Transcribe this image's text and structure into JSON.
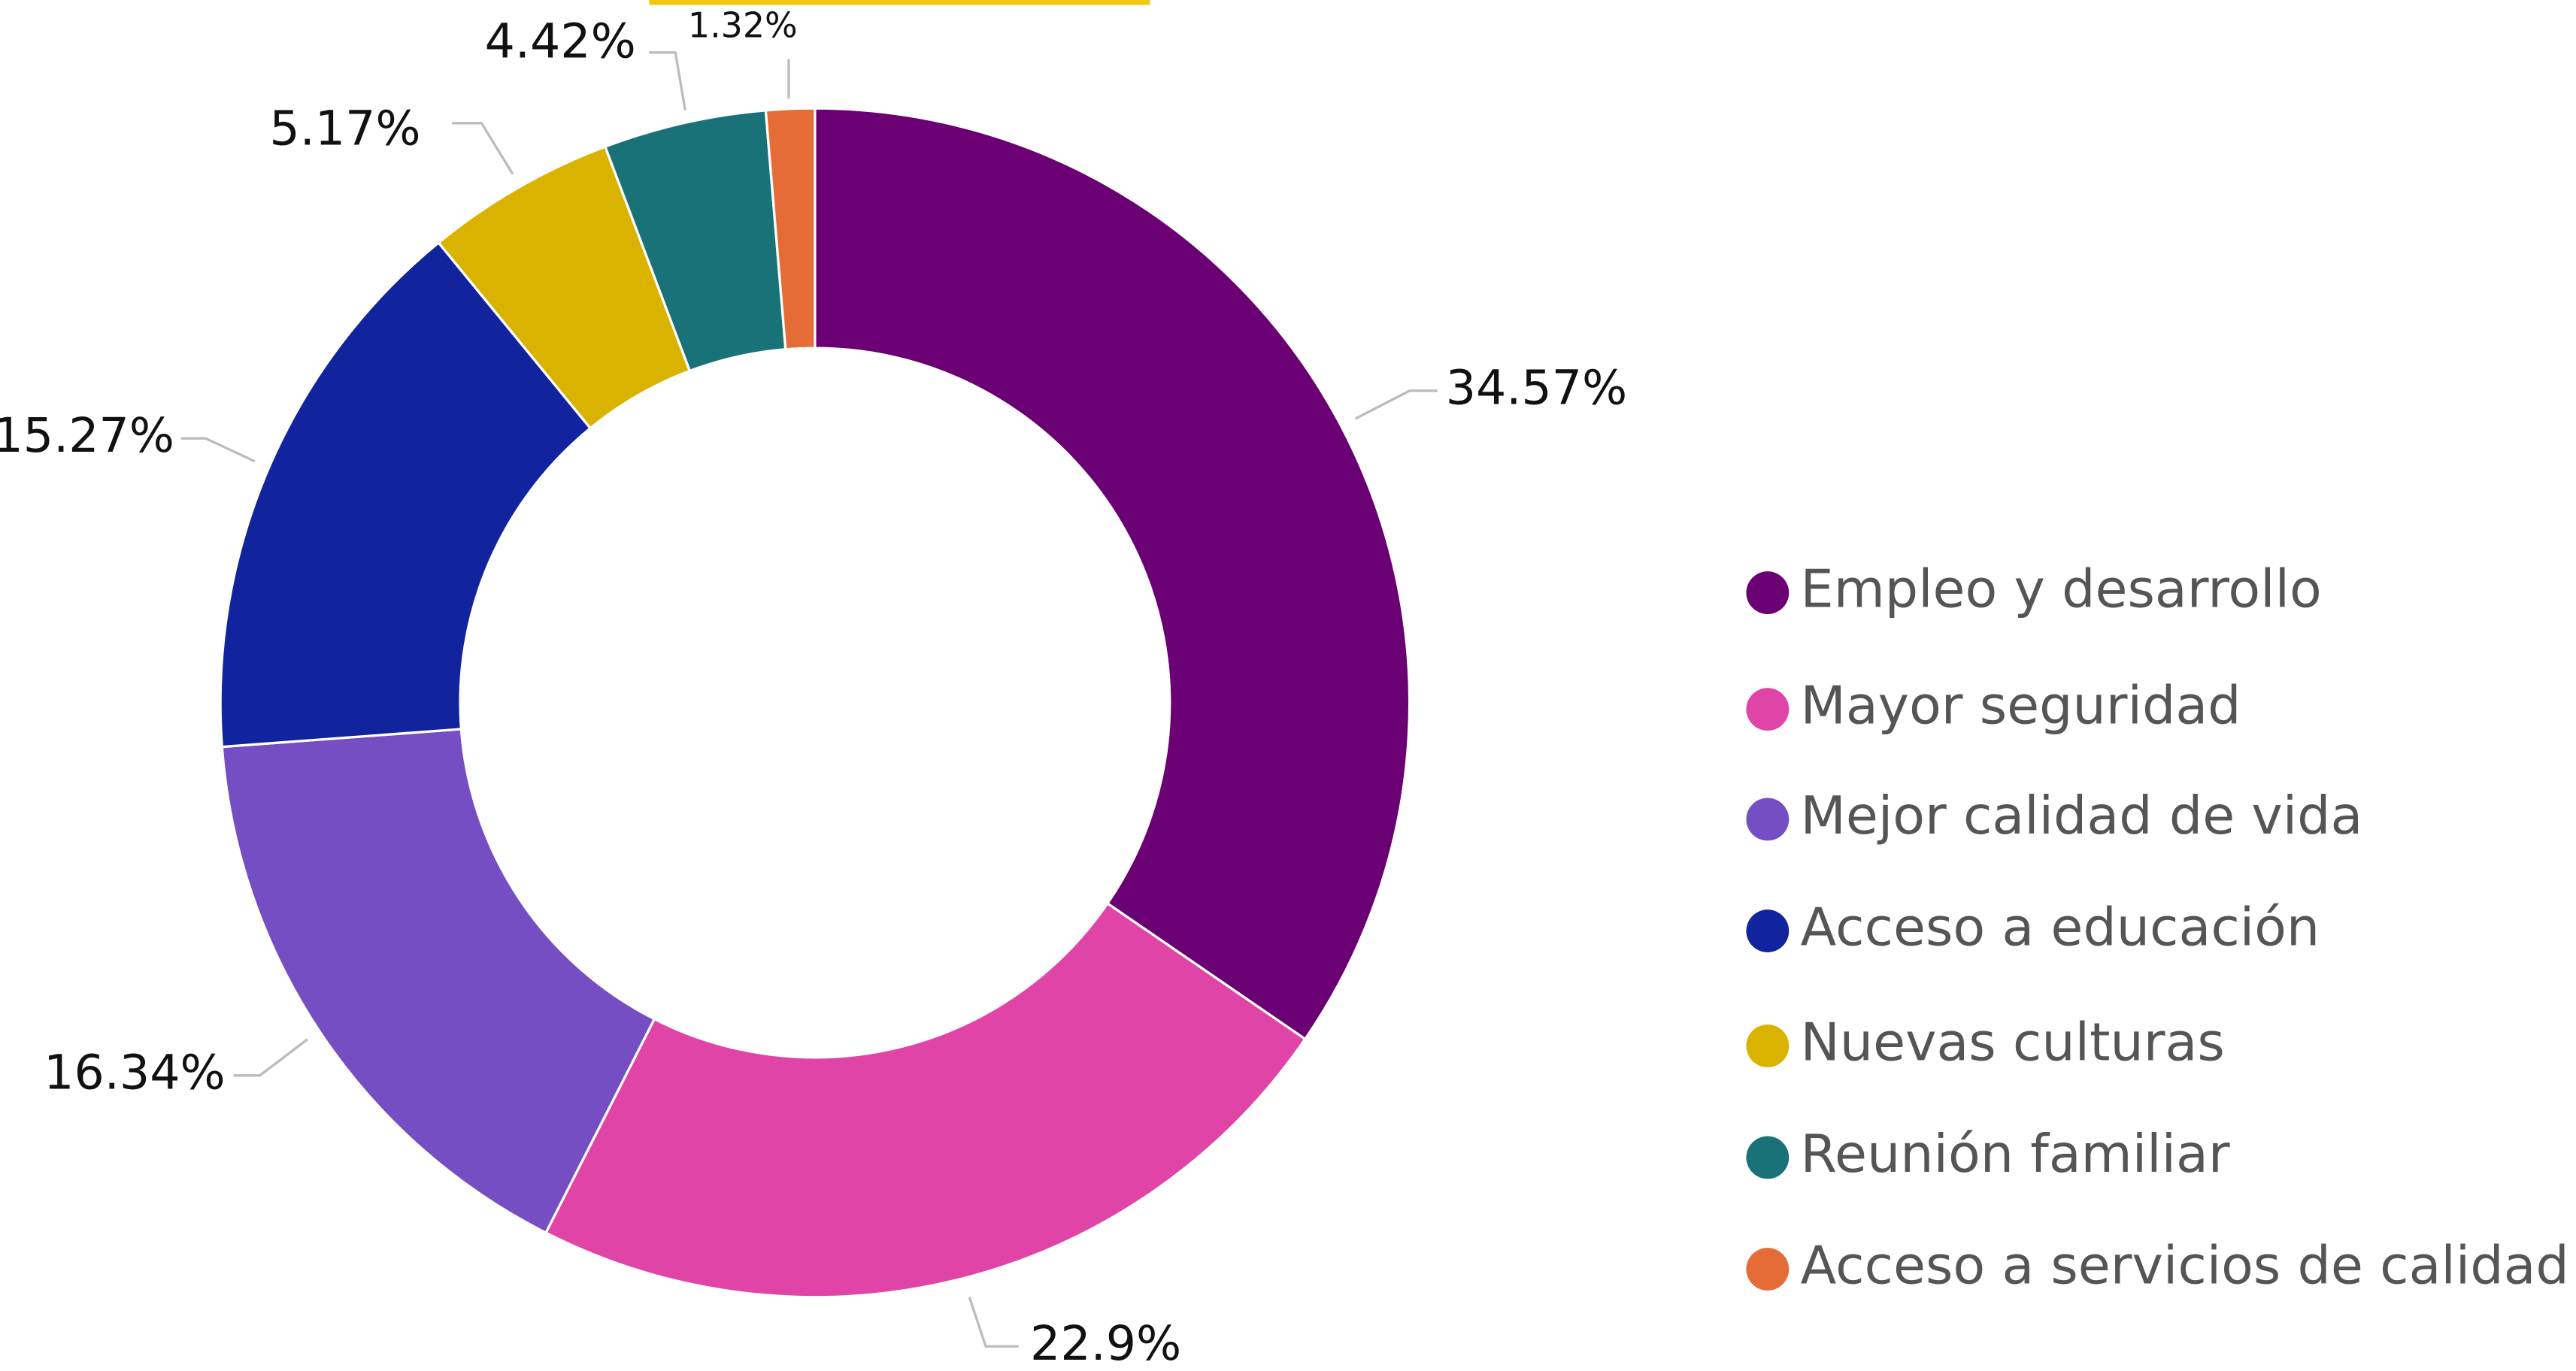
{
  "chart_data": {
    "type": "donut",
    "categories": [
      "Empleo y desarrollo",
      "Mayor seguridad",
      "Mejor calidad de vida",
      "Acceso a educación",
      "Nuevas culturas",
      "Reunión familiar",
      "Acceso a servicios de calidad"
    ],
    "values": [
      34.57,
      22.9,
      16.34,
      15.27,
      5.17,
      4.42,
      1.32
    ],
    "value_labels": [
      "34.57%",
      "22.9%",
      "16.34%",
      "15.27%",
      "5.17%",
      "4.42%",
      "1.32%"
    ],
    "colors": [
      "#6a0073",
      "#e044a7",
      "#744ec2",
      "#12239e",
      "#d9b300",
      "#197278",
      "#e66c37"
    ],
    "legend": "right"
  }
}
